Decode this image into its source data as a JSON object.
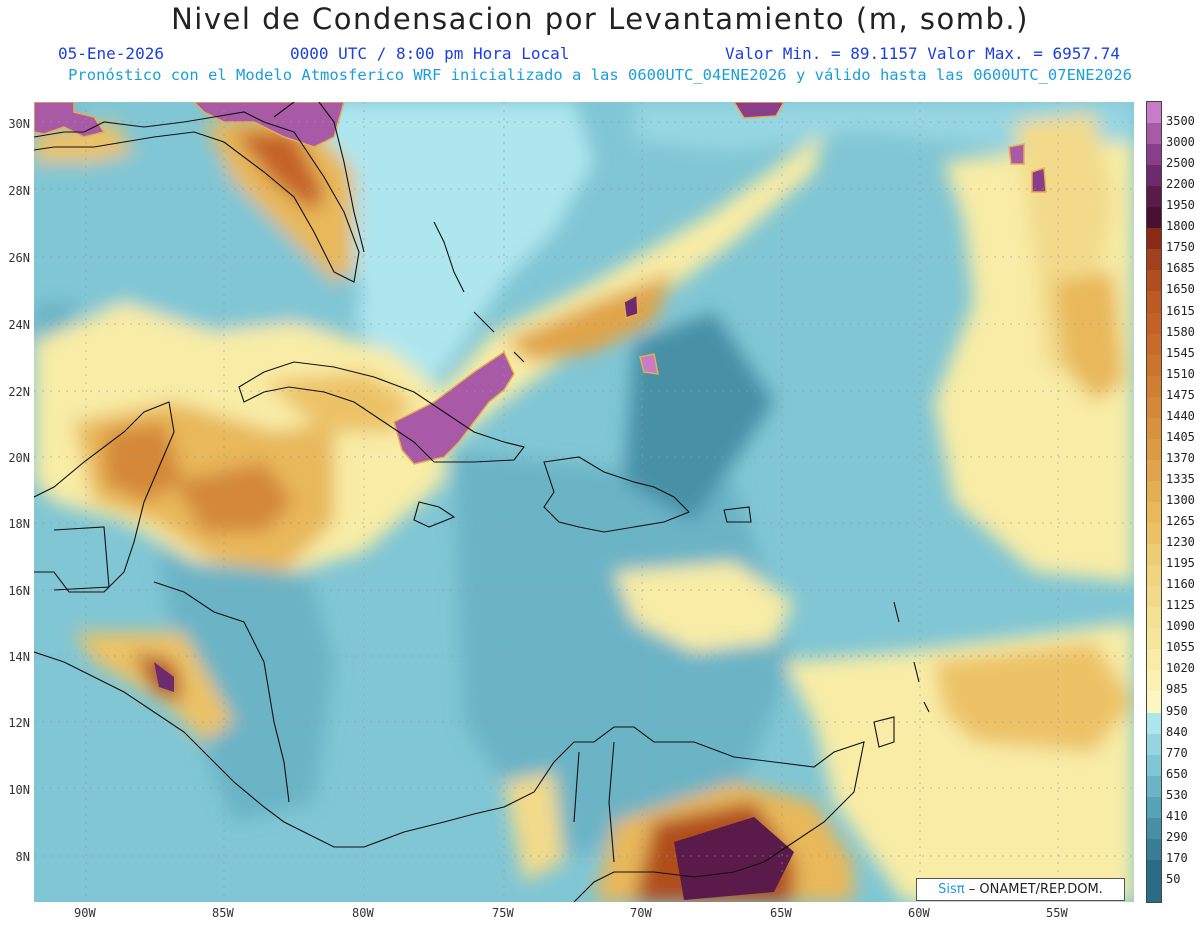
{
  "header": {
    "title": "Nivel de Condensacion por Levantamiento (m, somb.)",
    "date": "05-Ene-2026",
    "time": "0000 UTC / 8:00 pm Hora Local",
    "minmax": "Valor Min. = 89.1157  Valor Max. = 6957.74",
    "model": "Pronóstico con el Modelo Atmosferico WRF inicializado a las 0600UTC_04ENE2026 y válido hasta las  0600UTC_07ENE2026"
  },
  "axes": {
    "lat_labels": [
      "30N",
      "28N",
      "26N",
      "24N",
      "22N",
      "20N",
      "18N",
      "16N",
      "14N",
      "12N",
      "10N",
      "8N"
    ],
    "lon_labels": [
      "90W",
      "85W",
      "80W",
      "75W",
      "70W",
      "65W",
      "60W",
      "55W"
    ]
  },
  "colorbar": {
    "levels": [
      "3500",
      "3000",
      "2500",
      "2200",
      "1950",
      "1800",
      "1750",
      "1685",
      "1650",
      "1615",
      "1580",
      "1545",
      "1510",
      "1475",
      "1440",
      "1405",
      "1370",
      "1335",
      "1300",
      "1265",
      "1230",
      "1195",
      "1160",
      "1125",
      "1090",
      "1055",
      "1020",
      "985",
      "950",
      "840",
      "770",
      "650",
      "530",
      "410",
      "290",
      "170",
      "50"
    ],
    "colors": [
      "#c87bc6",
      "#a85aa6",
      "#8a3d8a",
      "#6e2a6e",
      "#5a1a4a",
      "#4a1030",
      "#8c2a18",
      "#a0401c",
      "#b04e1e",
      "#bc5a22",
      "#c46226",
      "#c86a2a",
      "#cc742e",
      "#d07e32",
      "#d48838",
      "#d8923e",
      "#dc9a42",
      "#e0a44a",
      "#e4ae52",
      "#e8b85a",
      "#ecc266",
      "#eecc72",
      "#f0d47e",
      "#f2da8a",
      "#f4e092",
      "#f6e69c",
      "#f8eca6",
      "#faf2b2",
      "#fcf6c0",
      "#aee6ee",
      "#96d6e2",
      "#80c6d4",
      "#6ab4c6",
      "#56a2b6",
      "#4690a6",
      "#387e96",
      "#2a6c86"
    ],
    "extend_color": "#2a6c86"
  },
  "credit": {
    "logo": "Sisπ",
    "text": "– ONAMET/REP.DOM."
  }
}
